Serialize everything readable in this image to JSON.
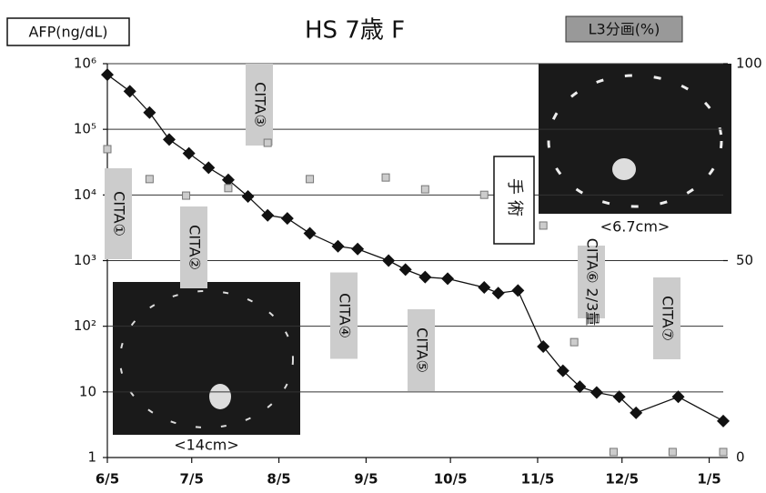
{
  "chart_data": {
    "type": "line",
    "title": "HS 7歳 F",
    "xlim": [
      0,
      219
    ],
    "xticks": [
      {
        "value": 0,
        "label": "6/5"
      },
      {
        "value": 30,
        "label": "7/5"
      },
      {
        "value": 61,
        "label": "8/5"
      },
      {
        "value": 92,
        "label": "9/5"
      },
      {
        "value": 122,
        "label": "10/5"
      },
      {
        "value": 153,
        "label": "11/5"
      },
      {
        "value": 183,
        "label": "12/5"
      },
      {
        "value": 214,
        "label": "1/5"
      }
    ],
    "ylim": [
      1,
      1000000
    ],
    "log_y": true,
    "yticks": [
      {
        "value": 1000000,
        "label": "10⁶"
      },
      {
        "value": 100000,
        "label": "10⁵"
      },
      {
        "value": 10000,
        "label": "10⁴"
      },
      {
        "value": 1000,
        "label": "10³"
      },
      {
        "value": 100,
        "label": "10²"
      },
      10,
      1
    ],
    "y2lim": [
      0,
      100
    ],
    "y2ticks": [
      0,
      50,
      100
    ],
    "grid": true,
    "series": [
      {
        "name": "AFP(ng/dL)",
        "color": "#111111",
        "marker": "diamond",
        "x": [
          0,
          8,
          15,
          22,
          29,
          36,
          43,
          50,
          57,
          64,
          72,
          82,
          89,
          100,
          106,
          113,
          121,
          134,
          139,
          146,
          155,
          162,
          168,
          174,
          182,
          188,
          203,
          219
        ],
        "values": [
          680000,
          380000,
          180000,
          70000,
          43000,
          26000,
          17000,
          9500,
          4900,
          4400,
          2600,
          1650,
          1500,
          1000,
          730,
          560,
          530,
          390,
          320,
          350,
          49,
          21,
          12,
          9.8,
          8.4,
          4.8,
          8.4,
          3.6
        ]
      },
      {
        "name": "L3分画(%)",
        "color": "#999999",
        "marker": "square",
        "axis": "y2",
        "x": [
          0,
          15,
          28,
          43,
          57,
          72,
          99,
          113,
          134,
          155,
          166,
          180,
          201,
          219
        ],
        "values": [
          78.3,
          70.7,
          66.5,
          68.4,
          79.9,
          70.7,
          71.1,
          68.1,
          66.7,
          58.9,
          29.3,
          1.4,
          1.4,
          1.4
        ]
      }
    ],
    "annotations": [
      "CITA①",
      "CITA②",
      "CITA③",
      "CITA④",
      "CITA⑤",
      "CITA⑥ 2/3量",
      "CITA⑦",
      "手術"
    ],
    "image_captions": [
      "<14cm>",
      "<6.7cm>"
    ]
  }
}
